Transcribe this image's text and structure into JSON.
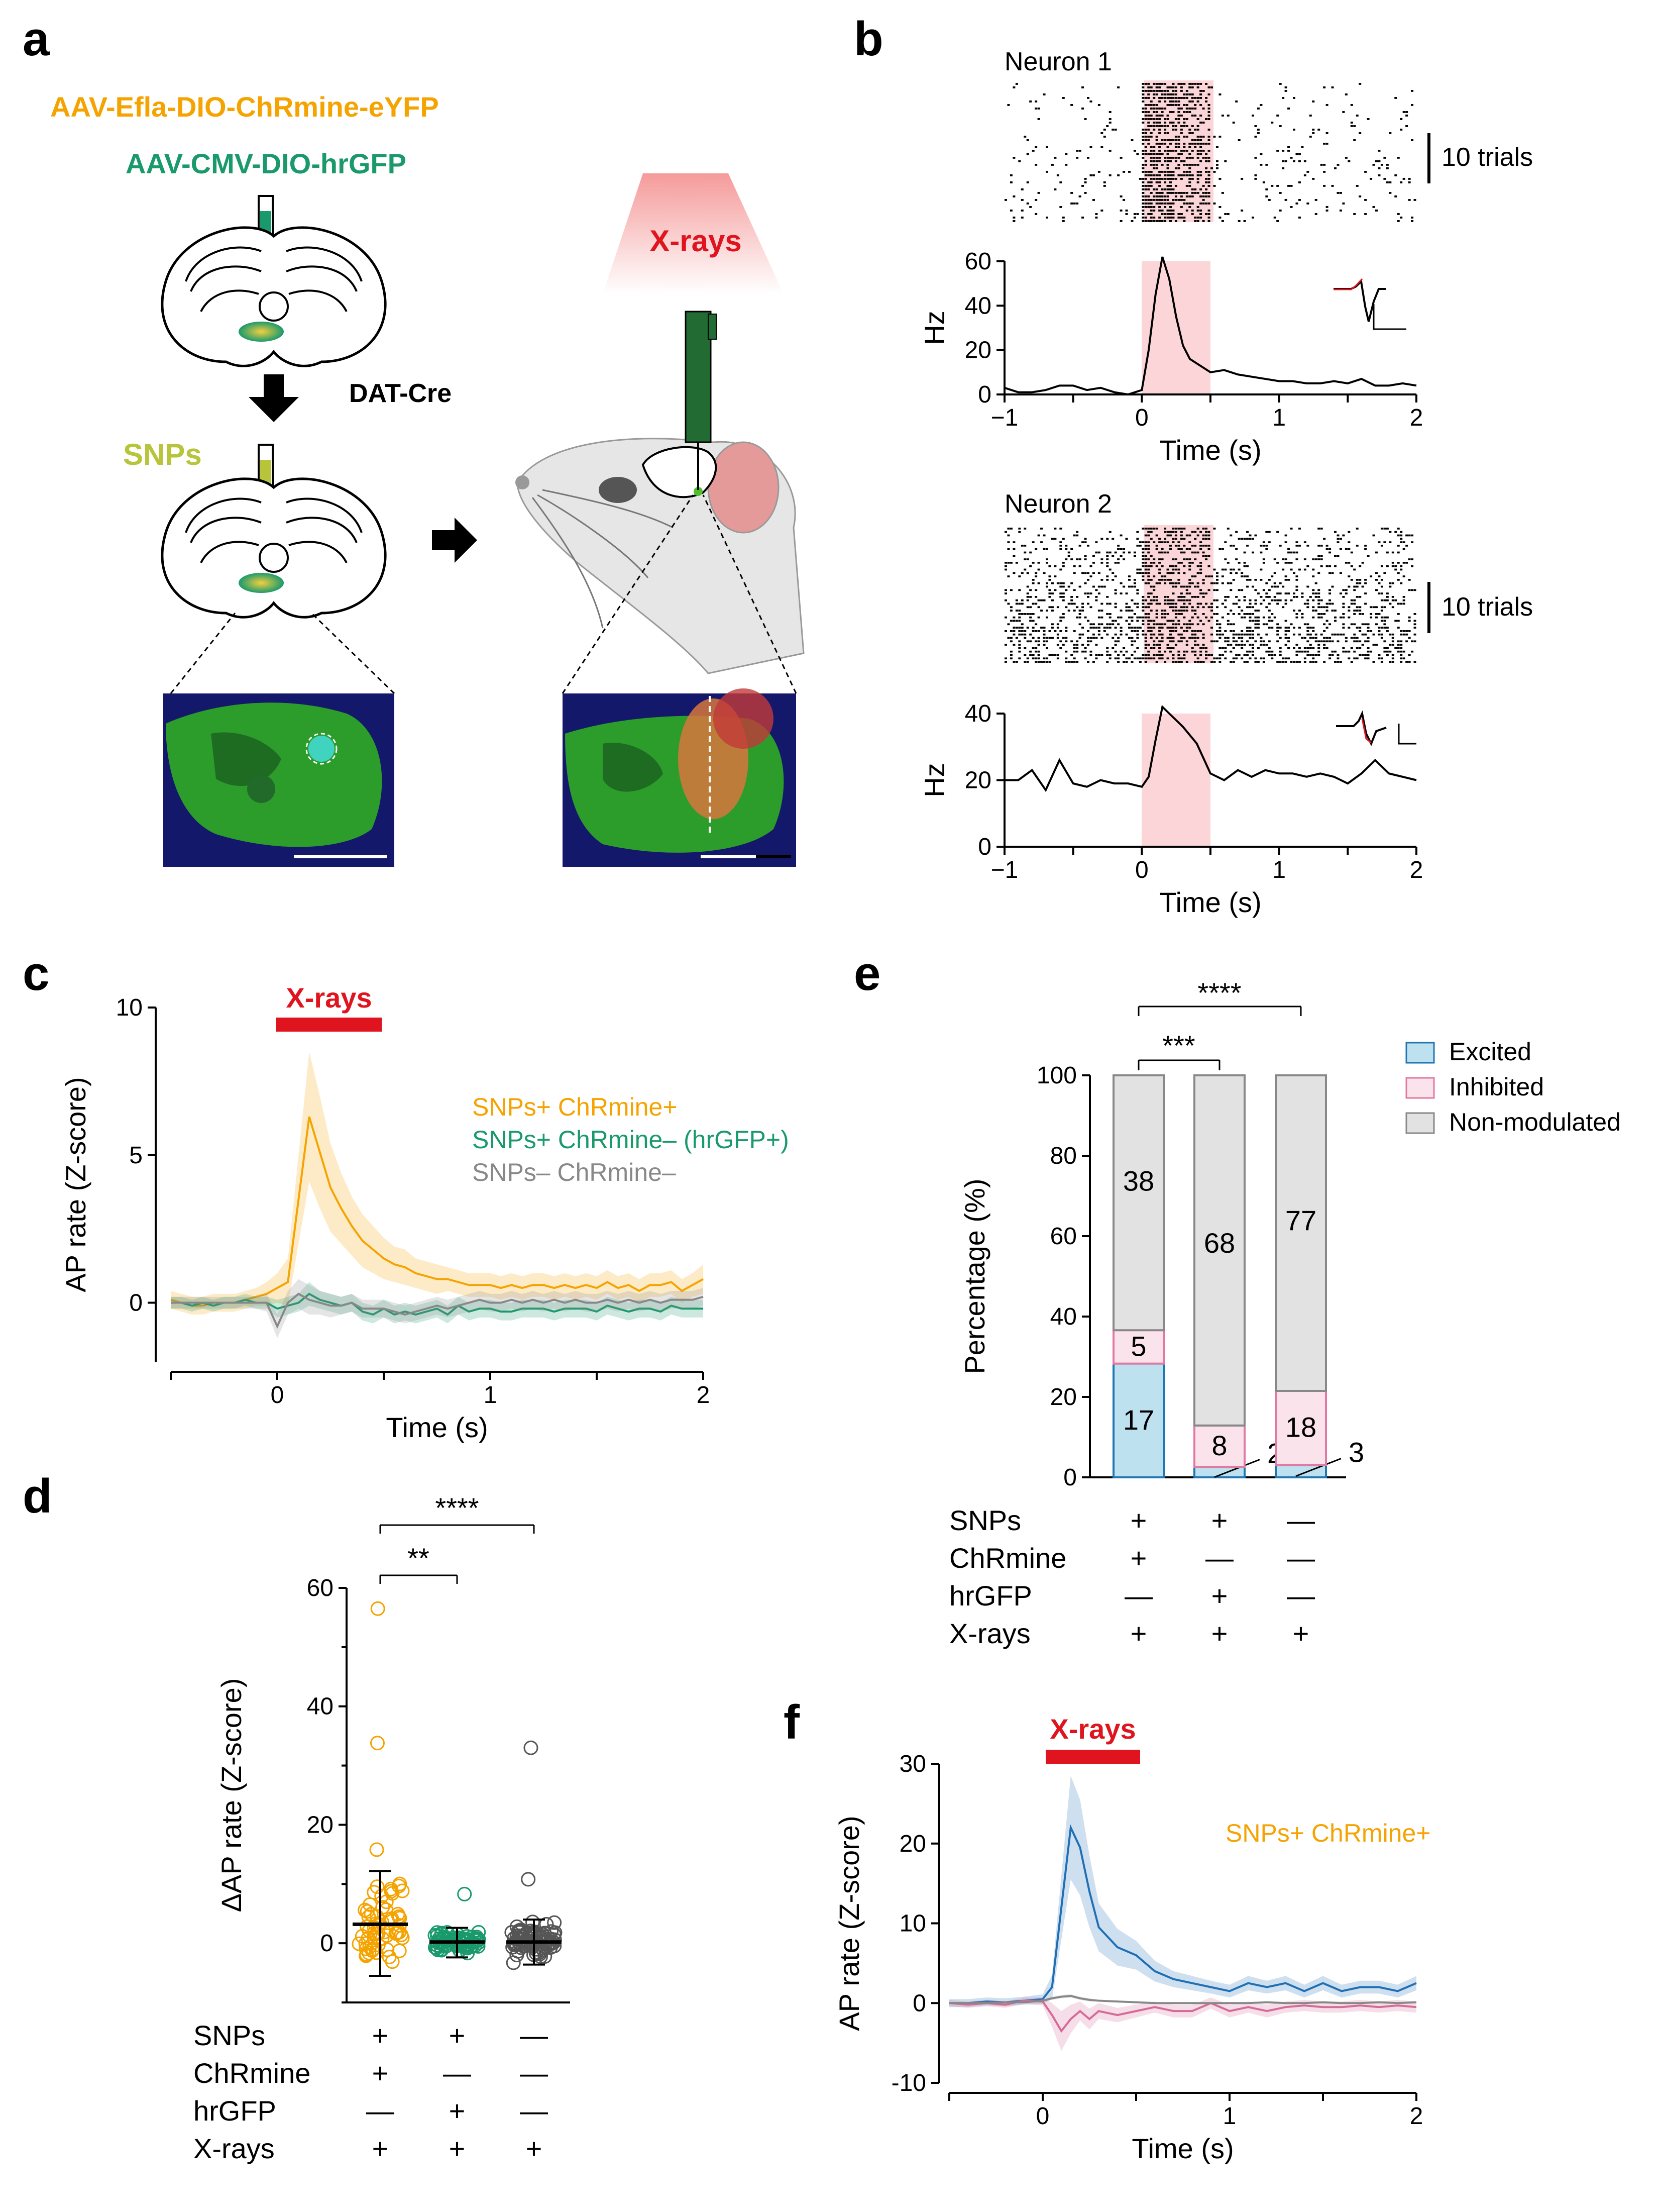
{
  "panel_letters": [
    "a",
    "b",
    "c",
    "d",
    "e",
    "f"
  ],
  "panel_a": {
    "virus1": "AAV-Efla-DIO-ChRmine-eYFP",
    "virus2": "AAV-CMV-DIO-hrGFP",
    "mouse_line": "DAT-Cre",
    "snps_label": "SNPs",
    "xray_label": "X-rays",
    "colors": {
      "virus1": "#f5a300",
      "virus2": "#1a9a6c",
      "snps": "#b8c43a",
      "xray": "#e0141e",
      "probe": "#226b33"
    }
  },
  "panel_b": {
    "neuron1_title": "Neuron 1",
    "neuron2_title": "Neuron 2",
    "scale_label": "10 trials",
    "ylabel": "Hz",
    "xlabel": "Time (s)"
  },
  "panel_c": {
    "title": "X-rays",
    "legend": [
      "SNPs+ ChRmine+",
      "SNPs+ ChRmine– (hrGFP+)",
      "SNPs– ChRmine–"
    ],
    "xlabel": "Time (s)",
    "ylabel": "AP rate (Z-score)"
  },
  "panel_d": {
    "ylabel": "ΔAP rate (Z-score)",
    "sig1": "**",
    "sig2": "****"
  },
  "panel_e": {
    "ylabel": "Percentage (%)",
    "sig1": "***",
    "sig2": "****",
    "legend": [
      "Excited",
      "Inhibited",
      "Non-modulated"
    ]
  },
  "panel_f": {
    "title": "X-rays",
    "label": "SNPs+ ChRmine+",
    "xlabel": "Time (s)",
    "ylabel": "AP rate (Z-score)"
  },
  "condition_table": {
    "rows": [
      "SNPs",
      "ChRmine",
      "hrGFP",
      "X-rays"
    ],
    "cols": [
      [
        "+",
        "+",
        "—",
        "+"
      ],
      [
        "+",
        "—",
        "+",
        "+"
      ],
      [
        "—",
        "—",
        "—",
        "+"
      ]
    ]
  },
  "chart_data": [
    {
      "id": "b-neuron1-psth",
      "type": "line",
      "x": [
        -1,
        -0.9,
        -0.8,
        -0.7,
        -0.6,
        -0.5,
        -0.4,
        -0.3,
        -0.2,
        -0.1,
        0,
        0.05,
        0.1,
        0.15,
        0.2,
        0.25,
        0.3,
        0.35,
        0.4,
        0.5,
        0.6,
        0.7,
        0.8,
        0.9,
        1,
        1.1,
        1.2,
        1.3,
        1.4,
        1.5,
        1.6,
        1.7,
        1.8,
        1.9,
        2
      ],
      "y": [
        3,
        1,
        1,
        2,
        4,
        4,
        2,
        3,
        1,
        0,
        2,
        20,
        45,
        62,
        52,
        35,
        22,
        16,
        14,
        10,
        11,
        9,
        8,
        7,
        6,
        6,
        5,
        5,
        6,
        5,
        7,
        4,
        4,
        5,
        4
      ],
      "xlim": [
        -1,
        2
      ],
      "ylim": [
        0,
        60
      ],
      "xticks": [
        -1,
        0,
        1,
        2
      ],
      "yticks": [
        0,
        20,
        40,
        60
      ],
      "stim": [
        0,
        0.5
      ],
      "ylabel": "Hz",
      "xlabel": "Time (s)"
    },
    {
      "id": "b-neuron2-psth",
      "type": "line",
      "x": [
        -1,
        -0.9,
        -0.8,
        -0.7,
        -0.6,
        -0.5,
        -0.4,
        -0.3,
        -0.2,
        -0.1,
        0,
        0.05,
        0.1,
        0.15,
        0.2,
        0.3,
        0.4,
        0.5,
        0.6,
        0.7,
        0.8,
        0.9,
        1,
        1.1,
        1.2,
        1.3,
        1.4,
        1.5,
        1.6,
        1.7,
        1.8,
        1.9,
        2
      ],
      "y": [
        20,
        20,
        23,
        17,
        26,
        19,
        18,
        20,
        19,
        19,
        18,
        21,
        32,
        42,
        40,
        36,
        31,
        22,
        20,
        23,
        21,
        23,
        22,
        22,
        21,
        22,
        21,
        19,
        22,
        26,
        22,
        21,
        20
      ],
      "xlim": [
        -1,
        2
      ],
      "ylim": [
        0,
        40
      ],
      "xticks": [
        -1,
        0,
        1,
        2
      ],
      "yticks": [
        0,
        20,
        40
      ],
      "stim": [
        0,
        0.5
      ],
      "ylabel": "Hz",
      "xlabel": "Time (s)"
    },
    {
      "id": "c-population",
      "type": "line",
      "x": [
        -0.5,
        -0.45,
        -0.4,
        -0.35,
        -0.3,
        -0.25,
        -0.2,
        -0.15,
        -0.1,
        -0.05,
        0,
        0.05,
        0.1,
        0.15,
        0.2,
        0.25,
        0.3,
        0.35,
        0.4,
        0.45,
        0.5,
        0.55,
        0.6,
        0.65,
        0.7,
        0.75,
        0.8,
        0.85,
        0.9,
        0.95,
        1,
        1.05,
        1.1,
        1.15,
        1.2,
        1.25,
        1.3,
        1.35,
        1.4,
        1.45,
        1.5,
        1.55,
        1.6,
        1.65,
        1.7,
        1.75,
        1.8,
        1.85,
        1.9,
        1.95,
        2
      ],
      "series": [
        {
          "name": "SNPs+ ChRmine+",
          "color": "#f5a300",
          "values": [
            0.1,
            0.0,
            -0.1,
            -0.1,
            0.0,
            0.0,
            0.0,
            0.1,
            0.2,
            0.3,
            0.5,
            0.7,
            3.5,
            6.3,
            5.1,
            3.9,
            3.2,
            2.6,
            2.1,
            1.8,
            1.5,
            1.3,
            1.2,
            1.0,
            0.9,
            0.8,
            0.8,
            0.7,
            0.6,
            0.6,
            0.6,
            0.5,
            0.6,
            0.5,
            0.6,
            0.6,
            0.5,
            0.6,
            0.5,
            0.6,
            0.5,
            0.7,
            0.5,
            0.6,
            0.4,
            0.6,
            0.6,
            0.7,
            0.4,
            0.6,
            0.8
          ],
          "error": [
            0.3,
            0.3,
            0.3,
            0.3,
            0.3,
            0.3,
            0.3,
            0.3,
            0.3,
            0.4,
            0.5,
            0.8,
            1.5,
            2.2,
            1.9,
            1.5,
            1.2,
            1.0,
            0.9,
            0.8,
            0.7,
            0.6,
            0.6,
            0.5,
            0.5,
            0.5,
            0.4,
            0.4,
            0.4,
            0.4,
            0.4,
            0.4,
            0.4,
            0.4,
            0.4,
            0.4,
            0.4,
            0.4,
            0.4,
            0.4,
            0.4,
            0.4,
            0.4,
            0.4,
            0.4,
            0.4,
            0.4,
            0.4,
            0.4,
            0.4,
            0.5
          ]
        },
        {
          "name": "SNPs+ ChRmine– (hrGFP+)",
          "color": "#1a9a6c",
          "values": [
            0.0,
            0.0,
            -0.1,
            0.0,
            -0.1,
            0.0,
            0.0,
            0.1,
            0.0,
            0.0,
            -0.2,
            -0.1,
            0.0,
            0.3,
            0.1,
            0.0,
            -0.1,
            0.0,
            -0.3,
            -0.4,
            -0.2,
            -0.4,
            -0.3,
            -0.4,
            -0.3,
            -0.2,
            -0.4,
            -0.1,
            -0.3,
            -0.2,
            -0.2,
            -0.3,
            -0.3,
            -0.2,
            -0.2,
            -0.2,
            -0.3,
            -0.2,
            -0.2,
            -0.2,
            -0.3,
            -0.1,
            -0.2,
            -0.3,
            -0.2,
            -0.2,
            -0.3,
            -0.1,
            -0.2,
            -0.2,
            -0.2
          ],
          "error": [
            0.2,
            0.2,
            0.2,
            0.2,
            0.2,
            0.2,
            0.2,
            0.2,
            0.2,
            0.2,
            0.3,
            0.3,
            0.3,
            0.4,
            0.3,
            0.3,
            0.3,
            0.3,
            0.3,
            0.3,
            0.3,
            0.3,
            0.3,
            0.3,
            0.3,
            0.3,
            0.3,
            0.3,
            0.3,
            0.3,
            0.3,
            0.3,
            0.3,
            0.3,
            0.3,
            0.3,
            0.3,
            0.3,
            0.3,
            0.3,
            0.3,
            0.3,
            0.3,
            0.3,
            0.3,
            0.3,
            0.3,
            0.3,
            0.3,
            0.3,
            0.3
          ]
        },
        {
          "name": "SNPs– ChRmine–",
          "color": "#888888",
          "values": [
            0.0,
            0.0,
            0.0,
            0.0,
            0.0,
            0.0,
            0.0,
            0.0,
            0.0,
            0.0,
            -0.8,
            0.0,
            0.3,
            0.1,
            0.0,
            -0.1,
            -0.1,
            0.0,
            -0.2,
            -0.2,
            -0.2,
            -0.3,
            -0.4,
            -0.3,
            -0.2,
            -0.1,
            -0.2,
            -0.1,
            0.0,
            0.1,
            0.0,
            0.0,
            0.1,
            0.0,
            0.1,
            0.0,
            0.1,
            0.0,
            0.1,
            0.0,
            0.0,
            0.1,
            0.0,
            0.1,
            0.0,
            0.1,
            0.0,
            0.1,
            0.1,
            0.1,
            0.2
          ],
          "error": [
            0.2,
            0.2,
            0.2,
            0.2,
            0.2,
            0.2,
            0.2,
            0.2,
            0.2,
            0.3,
            0.4,
            0.4,
            0.5,
            0.5,
            0.4,
            0.4,
            0.3,
            0.3,
            0.3,
            0.3,
            0.3,
            0.3,
            0.3,
            0.3,
            0.3,
            0.3,
            0.3,
            0.3,
            0.3,
            0.3,
            0.3,
            0.3,
            0.3,
            0.3,
            0.3,
            0.3,
            0.3,
            0.3,
            0.3,
            0.3,
            0.3,
            0.3,
            0.3,
            0.3,
            0.3,
            0.3,
            0.3,
            0.3,
            0.3,
            0.3,
            0.3
          ]
        }
      ],
      "xlim": [
        -0.5,
        2
      ],
      "ylim": [
        -2,
        10
      ],
      "xticks": [
        0,
        1,
        2
      ],
      "yticks": [
        0,
        5,
        10
      ],
      "stim": [
        0,
        0.5
      ],
      "xlabel": "Time (s)",
      "ylabel": "AP rate (Z-score)"
    },
    {
      "id": "d-scatter",
      "type": "scatter",
      "categories": [
        "SNPs+ ChRmine+",
        "SNPs+ hrGFP+",
        "SNPs–"
      ],
      "colors": [
        "#f5a300",
        "#1a9a6c",
        "#555555"
      ],
      "mean": [
        3.2,
        0.2,
        0.2
      ],
      "sd_upper": [
        12.2,
        2.6,
        4.0
      ],
      "sd_lower": [
        -5.5,
        -2.4,
        -3.6
      ],
      "outliers": [
        [
          56.5,
          33.8,
          15.8
        ],
        [
          8.3
        ],
        [
          33.0,
          10.8
        ]
      ],
      "ylim": [
        -10,
        60
      ],
      "yticks": [
        0,
        20,
        40,
        60
      ],
      "ylabel": "ΔAP rate (Z-score)"
    },
    {
      "id": "e-stacked",
      "type": "bar",
      "categories": [
        "SNPs+ ChRmine+",
        "SNPs+ hrGFP+",
        "SNPs–"
      ],
      "series": [
        {
          "name": "Excited",
          "color": "#bde1ef",
          "edge": "#1f77b4",
          "values": [
            28.3,
            2.6,
            3.1
          ],
          "counts": [
            17,
            2,
            3
          ]
        },
        {
          "name": "Inhibited",
          "color": "#fbe3ec",
          "edge": "#e07aa3",
          "values": [
            8.3,
            10.3,
            18.4
          ],
          "counts": [
            5,
            8,
            18
          ]
        },
        {
          "name": "Non-modulated",
          "color": "#e2e2e2",
          "edge": "#888888",
          "values": [
            63.4,
            87.1,
            78.5
          ],
          "counts": [
            38,
            68,
            77
          ]
        }
      ],
      "ylim": [
        0,
        100
      ],
      "yticks": [
        0,
        20,
        40,
        60,
        80,
        100
      ],
      "ylabel": "Percentage (%)"
    },
    {
      "id": "f-population",
      "type": "line",
      "x": [
        -0.5,
        -0.4,
        -0.3,
        -0.2,
        -0.1,
        0,
        0.05,
        0.1,
        0.15,
        0.2,
        0.25,
        0.3,
        0.4,
        0.5,
        0.6,
        0.7,
        0.8,
        0.9,
        1,
        1.1,
        1.2,
        1.3,
        1.4,
        1.5,
        1.6,
        1.7,
        1.8,
        1.9,
        2
      ],
      "series": [
        {
          "name": "Excited",
          "color": "#1f6fb4",
          "values": [
            0.0,
            0.0,
            0.2,
            0.1,
            0.3,
            0.5,
            2.0,
            12.0,
            22.0,
            19.5,
            14.0,
            9.5,
            7.0,
            6.0,
            4.0,
            3.0,
            2.5,
            2.0,
            1.5,
            2.5,
            2.0,
            2.5,
            1.5,
            2.5,
            1.5,
            2.0,
            2.0,
            1.5,
            2.5
          ],
          "error": [
            0.5,
            0.5,
            0.5,
            0.5,
            0.5,
            0.6,
            1.5,
            4.0,
            6.5,
            6.0,
            4.5,
            3.0,
            2.3,
            1.8,
            1.3,
            1.0,
            0.9,
            0.8,
            0.8,
            0.9,
            0.8,
            0.9,
            0.8,
            0.9,
            0.8,
            0.8,
            0.8,
            0.8,
            0.9
          ]
        },
        {
          "name": "Inhibited",
          "color": "#d46a95",
          "values": [
            0.0,
            -0.2,
            0.0,
            -0.2,
            0.3,
            0.2,
            -1.5,
            -3.5,
            -2.0,
            -1.0,
            -2.0,
            -1.0,
            -1.5,
            -1.0,
            -0.5,
            -1.0,
            -1.0,
            0.0,
            -1.0,
            -0.5,
            -1.0,
            -0.5,
            -0.3,
            -0.5,
            -0.5,
            -0.3,
            -0.5,
            -0.3,
            -0.5
          ],
          "error": [
            0.4,
            0.4,
            0.4,
            0.4,
            0.4,
            0.5,
            1.5,
            2.5,
            1.8,
            1.2,
            1.3,
            1.0,
            0.9,
            0.8,
            0.7,
            0.8,
            0.8,
            0.7,
            0.8,
            0.7,
            0.8,
            0.7,
            0.7,
            0.7,
            0.7,
            0.7,
            0.7,
            0.7,
            0.7
          ]
        },
        {
          "name": "Non-modulated",
          "color": "#888888",
          "values": [
            0.0,
            0.0,
            0.0,
            0.1,
            0.1,
            0.3,
            0.6,
            0.8,
            0.9,
            0.6,
            0.4,
            0.3,
            0.2,
            0.1,
            0.0,
            0.0,
            0.0,
            0.0,
            0.0,
            0.0,
            0.1,
            0.0,
            0.0,
            0.1,
            0.0,
            0.0,
            0.1,
            0.0,
            0.1
          ],
          "error": [
            0.1,
            0.1,
            0.1,
            0.1,
            0.1,
            0.1,
            0.2,
            0.2,
            0.2,
            0.2,
            0.2,
            0.1,
            0.1,
            0.1,
            0.1,
            0.1,
            0.1,
            0.1,
            0.1,
            0.1,
            0.1,
            0.1,
            0.1,
            0.1,
            0.1,
            0.1,
            0.1,
            0.1,
            0.1
          ]
        }
      ],
      "xlim": [
        -0.5,
        2
      ],
      "ylim": [
        -10,
        30
      ],
      "xticks": [
        0,
        1,
        2
      ],
      "yticks": [
        -10,
        0,
        10,
        20,
        30
      ],
      "stim": [
        0,
        0.5
      ],
      "xlabel": "Time (s)",
      "ylabel": "AP rate (Z-score)"
    }
  ]
}
